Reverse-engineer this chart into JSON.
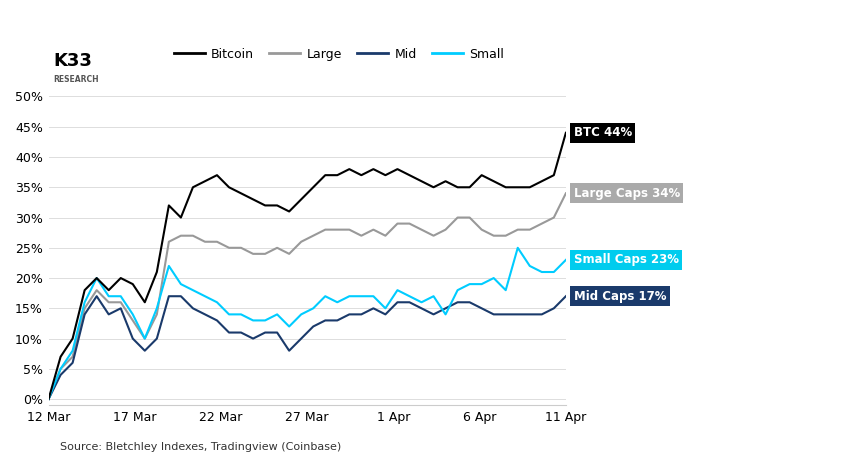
{
  "title": "",
  "source_text": "Source: Bletchley Indexes, Tradingview (Coinbase)",
  "legend_items": [
    "Bitcoin",
    "Large",
    "Mid",
    "Small"
  ],
  "line_colors": {
    "bitcoin": "#000000",
    "large": "#999999",
    "mid": "#1a3a6b",
    "small": "#00ccff"
  },
  "xtick_labels": [
    "12 Mar",
    "17 Mar",
    "22 Mar",
    "27 Mar",
    "1 Apr",
    "6 Apr",
    "11 Apr"
  ],
  "ylim": [
    -0.01,
    0.52
  ],
  "bitcoin": [
    0.0,
    0.07,
    0.1,
    0.18,
    0.2,
    0.18,
    0.2,
    0.19,
    0.16,
    0.21,
    0.32,
    0.3,
    0.35,
    0.36,
    0.37,
    0.35,
    0.34,
    0.33,
    0.32,
    0.32,
    0.31,
    0.33,
    0.35,
    0.37,
    0.37,
    0.38,
    0.37,
    0.38,
    0.37,
    0.38,
    0.37,
    0.36,
    0.35,
    0.36,
    0.35,
    0.35,
    0.37,
    0.36,
    0.35,
    0.35,
    0.35,
    0.36,
    0.37,
    0.44
  ],
  "large": [
    0.0,
    0.05,
    0.07,
    0.15,
    0.18,
    0.16,
    0.16,
    0.13,
    0.1,
    0.14,
    0.26,
    0.27,
    0.27,
    0.26,
    0.26,
    0.25,
    0.25,
    0.24,
    0.24,
    0.25,
    0.24,
    0.26,
    0.27,
    0.28,
    0.28,
    0.28,
    0.27,
    0.28,
    0.27,
    0.29,
    0.29,
    0.28,
    0.27,
    0.28,
    0.3,
    0.3,
    0.28,
    0.27,
    0.27,
    0.28,
    0.28,
    0.29,
    0.3,
    0.34
  ],
  "mid": [
    0.0,
    0.04,
    0.06,
    0.14,
    0.17,
    0.14,
    0.15,
    0.1,
    0.08,
    0.1,
    0.17,
    0.17,
    0.15,
    0.14,
    0.13,
    0.11,
    0.11,
    0.1,
    0.11,
    0.11,
    0.08,
    0.1,
    0.12,
    0.13,
    0.13,
    0.14,
    0.14,
    0.15,
    0.14,
    0.16,
    0.16,
    0.15,
    0.14,
    0.15,
    0.16,
    0.16,
    0.15,
    0.14,
    0.14,
    0.14,
    0.14,
    0.14,
    0.15,
    0.17
  ],
  "small": [
    0.0,
    0.05,
    0.08,
    0.16,
    0.2,
    0.17,
    0.17,
    0.14,
    0.1,
    0.15,
    0.22,
    0.19,
    0.18,
    0.17,
    0.16,
    0.14,
    0.14,
    0.13,
    0.13,
    0.14,
    0.12,
    0.14,
    0.15,
    0.17,
    0.16,
    0.17,
    0.17,
    0.17,
    0.15,
    0.18,
    0.17,
    0.16,
    0.17,
    0.14,
    0.18,
    0.19,
    0.19,
    0.2,
    0.18,
    0.25,
    0.22,
    0.21,
    0.21,
    0.23
  ],
  "ann_configs": [
    {
      "label": "BTC 44%",
      "bg": "#000000",
      "tc": "#ffffff",
      "key": "bitcoin"
    },
    {
      "label": "Large Caps 34%",
      "bg": "#aaaaaa",
      "tc": "#ffffff",
      "key": "large"
    },
    {
      "label": "Small Caps 23%",
      "bg": "#00ccee",
      "tc": "#ffffff",
      "key": "small"
    },
    {
      "label": "Mid Caps 17%",
      "bg": "#1a3a6b",
      "tc": "#ffffff",
      "key": "mid"
    }
  ]
}
